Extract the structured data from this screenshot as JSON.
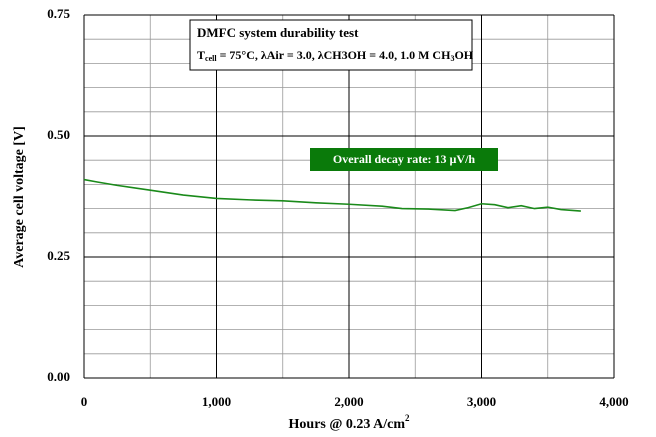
{
  "chart_data": {
    "type": "line",
    "annotation_title": "DMFC system durability test",
    "annotation_parts": [
      "T",
      "cell",
      " = 75°C, λAir = 3.0, λCH3OH = 4.0, 1.0 M CH",
      "3",
      "OH"
    ],
    "decay_label": "Overall decay rate: 13 µV/h",
    "x_label": "Hours @ 0.23 A/cm",
    "x_label_sup": "2",
    "y_label": "Average cell voltage [V]",
    "x": [
      0,
      100,
      250,
      500,
      750,
      1000,
      1250,
      1500,
      1750,
      2000,
      2250,
      2400,
      2600,
      2800,
      2900,
      3000,
      3100,
      3200,
      3300,
      3400,
      3500,
      3600,
      3750
    ],
    "series": [
      {
        "color": "#1a8a1a",
        "values": [
          0.41,
          0.405,
          0.398,
          0.388,
          0.378,
          0.371,
          0.368,
          0.366,
          0.362,
          0.359,
          0.355,
          0.35,
          0.349,
          0.346,
          0.352,
          0.36,
          0.358,
          0.352,
          0.356,
          0.35,
          0.353,
          0.348,
          0.345
        ]
      }
    ],
    "xlim": [
      0,
      4000
    ],
    "ylim": [
      0,
      0.75
    ],
    "xticks": [
      0,
      {
        "value": 1000,
        "label": "1,000"
      },
      {
        "value": 2000,
        "label": "2,000"
      },
      {
        "value": 3000,
        "label": "3,000"
      },
      {
        "value": 4000,
        "label": "4,000"
      }
    ],
    "yticks": [
      {
        "value": 0,
        "label": "0.00"
      },
      {
        "value": 0.25,
        "label": "0.25"
      },
      {
        "value": 0.5,
        "label": "0.50"
      },
      {
        "value": 0.75,
        "label": "0.75"
      }
    ],
    "minor_xticks": [
      500,
      1500,
      2500,
      3500
    ],
    "minor_yticks": [
      0.05,
      0.1,
      0.15,
      0.2,
      0.3,
      0.35,
      0.4,
      0.45,
      0.55,
      0.6,
      0.65,
      0.7
    ],
    "grid": true
  }
}
